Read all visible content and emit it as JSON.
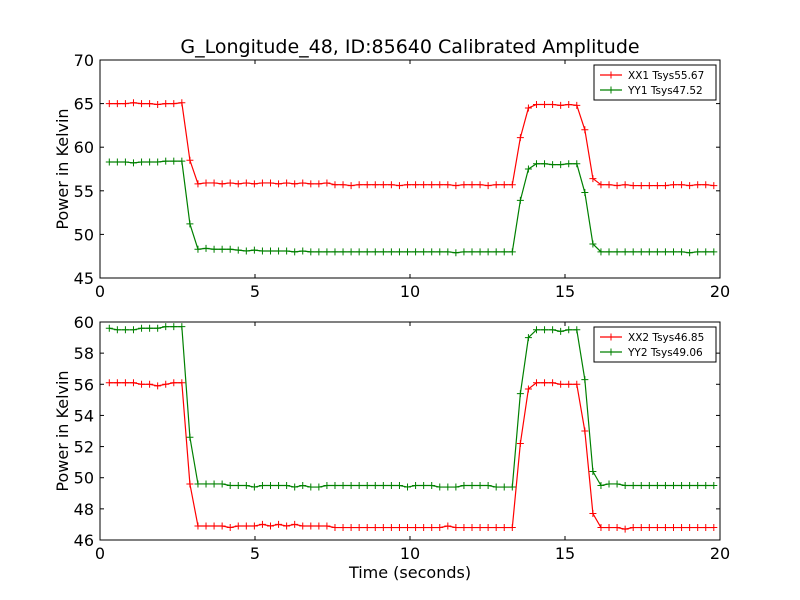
{
  "title": "G_Longitude_48, ID:85640 Calibrated Amplitude",
  "chart_data": [
    {
      "type": "line",
      "title": "G_Longitude_48, ID:85640 Calibrated Amplitude",
      "xlabel": "",
      "ylabel": "Power in Kelvin",
      "xlim": [
        0,
        20
      ],
      "ylim": [
        45,
        70
      ],
      "xticks": [
        "0",
        "5",
        "10",
        "15",
        "20"
      ],
      "yticks": [
        "45",
        "50",
        "55",
        "60",
        "65",
        "70"
      ],
      "legend_position": "top-right",
      "x": [
        0.3,
        0.56,
        0.82,
        1.08,
        1.34,
        1.6,
        1.86,
        2.12,
        2.38,
        2.64,
        2.9,
        3.16,
        3.42,
        3.68,
        3.94,
        4.2,
        4.46,
        4.72,
        4.98,
        5.24,
        5.5,
        5.76,
        6.02,
        6.28,
        6.54,
        6.8,
        7.06,
        7.32,
        7.58,
        7.84,
        8.1,
        8.36,
        8.62,
        8.88,
        9.14,
        9.4,
        9.66,
        9.92,
        10.18,
        10.44,
        10.7,
        10.96,
        11.22,
        11.48,
        11.74,
        12,
        12.26,
        12.52,
        12.78,
        13.04,
        13.3,
        13.56,
        13.82,
        14.08,
        14.34,
        14.6,
        14.86,
        15.12,
        15.38,
        15.64,
        15.9,
        16.16,
        16.42,
        16.68,
        16.94,
        17.2,
        17.46,
        17.72,
        17.98,
        18.24,
        18.5,
        18.76,
        19.02,
        19.28,
        19.54,
        19.8
      ],
      "series": [
        {
          "name": "XX1 Tsys55.67",
          "color": "#ff0000",
          "values": [
            65.0,
            65.0,
            65.0,
            65.1,
            65.0,
            65.0,
            64.9,
            65.0,
            65.0,
            65.1,
            58.5,
            55.8,
            55.9,
            55.9,
            55.8,
            55.9,
            55.8,
            55.9,
            55.8,
            55.9,
            55.9,
            55.8,
            55.9,
            55.8,
            55.9,
            55.8,
            55.8,
            55.9,
            55.7,
            55.7,
            55.6,
            55.7,
            55.7,
            55.7,
            55.7,
            55.7,
            55.6,
            55.7,
            55.7,
            55.7,
            55.7,
            55.7,
            55.7,
            55.6,
            55.7,
            55.7,
            55.7,
            55.6,
            55.7,
            55.7,
            55.7,
            61.1,
            64.5,
            64.9,
            64.9,
            64.9,
            64.8,
            64.9,
            64.8,
            62.0,
            56.4,
            55.7,
            55.7,
            55.6,
            55.7,
            55.6,
            55.6,
            55.6,
            55.6,
            55.6,
            55.7,
            55.7,
            55.6,
            55.7,
            55.7,
            55.6
          ]
        },
        {
          "name": "YY1 Tsys47.52",
          "color": "#008000",
          "values": [
            58.3,
            58.3,
            58.3,
            58.2,
            58.3,
            58.3,
            58.3,
            58.4,
            58.4,
            58.4,
            51.2,
            48.3,
            48.4,
            48.3,
            48.3,
            48.3,
            48.2,
            48.1,
            48.2,
            48.1,
            48.1,
            48.1,
            48.1,
            48.0,
            48.1,
            48.0,
            48.0,
            48.0,
            48.0,
            48.0,
            48.0,
            48.0,
            48.0,
            48.0,
            48.0,
            48.0,
            48.0,
            48.0,
            48.0,
            48.0,
            48.0,
            48.0,
            48.0,
            47.9,
            48.0,
            48.0,
            48.0,
            48.0,
            48.0,
            48.0,
            48.0,
            53.9,
            57.5,
            58.1,
            58.1,
            58.0,
            58.0,
            58.1,
            58.1,
            54.8,
            48.9,
            48.0,
            48.0,
            48.0,
            48.0,
            48.0,
            48.0,
            48.0,
            48.0,
            48.0,
            48.0,
            48.0,
            47.9,
            48.0,
            48.0,
            48.0
          ]
        }
      ]
    },
    {
      "type": "line",
      "title": "",
      "xlabel": "Time (seconds)",
      "ylabel": "Power in Kelvin",
      "xlim": [
        0,
        20
      ],
      "ylim": [
        46,
        60
      ],
      "xticks": [
        "0",
        "5",
        "10",
        "15",
        "20"
      ],
      "yticks": [
        "46",
        "48",
        "50",
        "52",
        "54",
        "56",
        "58",
        "60"
      ],
      "legend_position": "top-right",
      "x": [
        0.3,
        0.56,
        0.82,
        1.08,
        1.34,
        1.6,
        1.86,
        2.12,
        2.38,
        2.64,
        2.9,
        3.16,
        3.42,
        3.68,
        3.94,
        4.2,
        4.46,
        4.72,
        4.98,
        5.24,
        5.5,
        5.76,
        6.02,
        6.28,
        6.54,
        6.8,
        7.06,
        7.32,
        7.58,
        7.84,
        8.1,
        8.36,
        8.62,
        8.88,
        9.14,
        9.4,
        9.66,
        9.92,
        10.18,
        10.44,
        10.7,
        10.96,
        11.22,
        11.48,
        11.74,
        12,
        12.26,
        12.52,
        12.78,
        13.04,
        13.3,
        13.56,
        13.82,
        14.08,
        14.34,
        14.6,
        14.86,
        15.12,
        15.38,
        15.64,
        15.9,
        16.16,
        16.42,
        16.68,
        16.94,
        17.2,
        17.46,
        17.72,
        17.98,
        18.24,
        18.5,
        18.76,
        19.02,
        19.28,
        19.54,
        19.8
      ],
      "series": [
        {
          "name": "XX2 Tsys46.85",
          "color": "#ff0000",
          "values": [
            56.1,
            56.1,
            56.1,
            56.1,
            56.0,
            56.0,
            55.9,
            56.0,
            56.1,
            56.1,
            49.6,
            46.9,
            46.9,
            46.9,
            46.9,
            46.8,
            46.9,
            46.9,
            46.9,
            47.0,
            46.9,
            47.0,
            46.9,
            47.0,
            46.9,
            46.9,
            46.9,
            46.9,
            46.8,
            46.8,
            46.8,
            46.8,
            46.8,
            46.8,
            46.8,
            46.8,
            46.8,
            46.8,
            46.8,
            46.8,
            46.8,
            46.8,
            46.9,
            46.8,
            46.8,
            46.8,
            46.8,
            46.8,
            46.8,
            46.8,
            46.8,
            52.2,
            55.7,
            56.1,
            56.1,
            56.1,
            56.0,
            56.0,
            56.0,
            53.0,
            47.7,
            46.8,
            46.8,
            46.8,
            46.7,
            46.8,
            46.8,
            46.8,
            46.8,
            46.8,
            46.8,
            46.8,
            46.8,
            46.8,
            46.8,
            46.8
          ]
        },
        {
          "name": "YY2 Tsys49.06",
          "color": "#008000",
          "values": [
            59.6,
            59.5,
            59.5,
            59.5,
            59.6,
            59.6,
            59.6,
            59.7,
            59.7,
            59.7,
            52.6,
            49.6,
            49.6,
            49.6,
            49.6,
            49.5,
            49.5,
            49.5,
            49.4,
            49.5,
            49.5,
            49.5,
            49.5,
            49.4,
            49.5,
            49.4,
            49.4,
            49.5,
            49.5,
            49.5,
            49.5,
            49.5,
            49.5,
            49.5,
            49.5,
            49.5,
            49.5,
            49.4,
            49.5,
            49.5,
            49.5,
            49.4,
            49.4,
            49.4,
            49.5,
            49.5,
            49.5,
            49.5,
            49.4,
            49.4,
            49.4,
            55.4,
            59.0,
            59.5,
            59.5,
            59.5,
            59.4,
            59.5,
            59.5,
            56.3,
            50.4,
            49.5,
            49.6,
            49.6,
            49.5,
            49.5,
            49.5,
            49.5,
            49.5,
            49.5,
            49.5,
            49.5,
            49.5,
            49.5,
            49.5,
            49.5
          ]
        }
      ]
    }
  ]
}
